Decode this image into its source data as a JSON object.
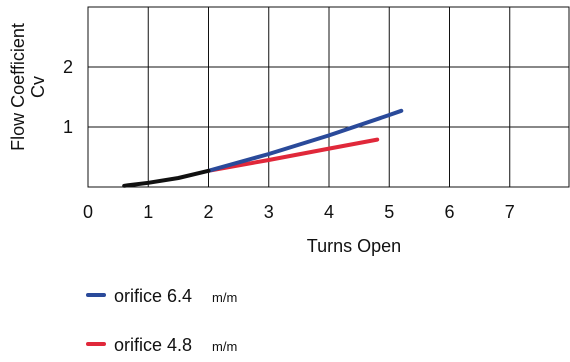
{
  "chart_data": {
    "type": "line",
    "xlabel": "Turns Open",
    "ylabel": [
      "Flow Coefficient",
      "Cv"
    ],
    "xlim": [
      0,
      8
    ],
    "ylim": [
      0,
      3
    ],
    "xticks": [
      "0",
      "1",
      "2",
      "3",
      "4",
      "5",
      "6",
      "7"
    ],
    "yticks": [
      "1",
      "2"
    ],
    "grid": true,
    "legend_position": "bottom-left",
    "series": [
      {
        "name": "orifice 6.4",
        "unit": "m/m",
        "color": "#2a4a9a",
        "x": [
          2.0,
          3.0,
          4.0,
          5.0,
          5.2
        ],
        "y": [
          0.27,
          0.55,
          0.86,
          1.2,
          1.27
        ]
      },
      {
        "name": "orifice 4.8",
        "unit": "m/m",
        "color": "#e0283a",
        "x": [
          2.0,
          3.0,
          4.0,
          4.8
        ],
        "y": [
          0.27,
          0.45,
          0.64,
          0.79
        ]
      },
      {
        "name": "",
        "color": "#111111",
        "x": [
          0.6,
          1.0,
          1.5,
          2.0
        ],
        "y": [
          0.02,
          0.07,
          0.15,
          0.27
        ]
      }
    ]
  }
}
